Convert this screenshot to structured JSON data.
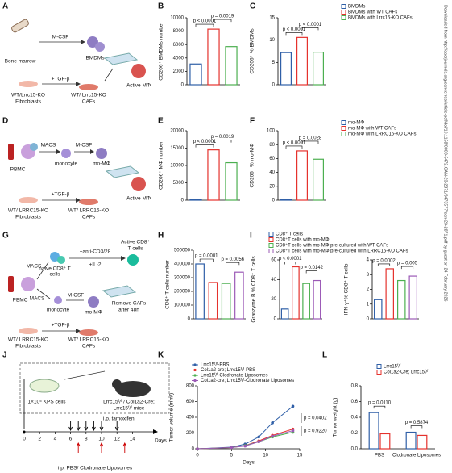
{
  "panels": [
    "A",
    "B",
    "C",
    "D",
    "E",
    "F",
    "G",
    "H",
    "I",
    "J",
    "K",
    "L"
  ],
  "diagram_a": [
    "Bone marrow",
    "M-CSF",
    "BMDMs",
    "+TGF-β",
    "WT/Lrrc15-KO",
    "Fibroblasts",
    "WT/ Lrrc15-KO",
    "CAFs",
    "Active MΦ"
  ],
  "diagram_d": [
    "PBMC",
    "MACS",
    "monocyte",
    "M-CSF",
    "mo-MΦ",
    "+TGF-β",
    "WT/ LRRC15-KO",
    "Fibroblasts",
    "WT/ LRRC15-KO",
    "CAFs",
    "Active MΦ"
  ],
  "diagram_g": [
    "MACS",
    "naive CD8⁺ T",
    "cells",
    "+anti-CD3/28",
    "+IL-2",
    "Active CD8⁺",
    "T cells",
    "PBMC",
    "MACS",
    "monocyte",
    "M-CSF",
    "mo-MΦ",
    "Remove CAFs",
    "after 48h",
    "+TGF-β",
    "WT/ LRRC15-KO",
    "Fibroblasts",
    "WT/ LRRC15-KO",
    "CAFs"
  ],
  "diagram_j": {
    "labels": [
      "1×10⁵ KPS cells",
      "Lrrc15ᶠ/ᶠ / Col1a2-Cre;",
      "Lrrc15ᶠ/ᶠ mice",
      "i.p. tamoxifen",
      "i.p. PBS/ Clodronate Liposomes",
      "Days"
    ],
    "ticks": [
      0,
      2,
      4,
      6,
      8,
      10,
      12,
      14
    ],
    "tamoxifen_days": [
      6,
      7,
      8,
      9,
      10,
      12
    ],
    "liposome_days": [
      7,
      10,
      13
    ]
  },
  "chart_data": [
    {
      "type": "bar",
      "ylabel": "CD206⁺ BMDMs number",
      "values": [
        3100,
        8300,
        5700
      ],
      "colors": [
        "#2f5fa7",
        "#e5322d",
        "#4caf50"
      ],
      "ylim": [
        0,
        10000
      ],
      "yticks": [
        0,
        2000,
        4000,
        6000,
        8000,
        10000
      ],
      "annotations": [
        "p < 0.0001",
        "p = 0.0019"
      ]
    },
    {
      "type": "bar",
      "ylabel": "CD206⁺ % BMDMs",
      "values": [
        7.2,
        10.6,
        7.3
      ],
      "colors": [
        "#2f5fa7",
        "#e5322d",
        "#4caf50"
      ],
      "ylim": [
        0,
        15
      ],
      "yticks": [
        0,
        5,
        10,
        15
      ],
      "annotations": [
        "p < 0.0001",
        "p < 0.0001"
      ],
      "categories": [
        "BMDMs",
        "BMDMs with WT CAFs",
        "BMDMs with Lrrc15-KO CAFs"
      ]
    },
    {
      "type": "bar",
      "ylabel": "CD206⁺ MΦ number",
      "values": [
        100,
        14500,
        10800
      ],
      "colors": [
        "#2f5fa7",
        "#e5322d",
        "#4caf50"
      ],
      "ylim": [
        0,
        20000
      ],
      "yticks": [
        0,
        5000,
        10000,
        15000,
        20000
      ],
      "annotations": [
        "p < 0.0001",
        "p = 0.0019"
      ]
    },
    {
      "type": "bar",
      "ylabel": "CD206⁺ % mo-MΦ",
      "values": [
        1,
        71,
        59
      ],
      "colors": [
        "#2f5fa7",
        "#e5322d",
        "#4caf50"
      ],
      "ylim": [
        0,
        100
      ],
      "yticks": [
        0,
        20,
        40,
        60,
        80,
        100
      ],
      "annotations": [
        "p < 0.0001",
        "p = 0.0028"
      ],
      "categories": [
        "mo-MΦ",
        "mo-MΦ with WT CAFs",
        "mo-MΦ with LRRC15-KO CAFs"
      ]
    },
    {
      "type": "bar",
      "ylabel": "CD8⁺ T cells number",
      "values": [
        400000,
        265000,
        258000,
        340000
      ],
      "colors": [
        "#2f5fa7",
        "#e5322d",
        "#4caf50",
        "#9b59b6"
      ],
      "ylim": [
        0,
        500000
      ],
      "yticks": [
        0,
        100000,
        200000,
        300000,
        400000,
        500000
      ],
      "annotations": [
        "p = 0.0001",
        "p = 0.0056"
      ]
    },
    {
      "type": "bar",
      "ylabel": "Granzyme B % CD8⁺ T cells",
      "values": [
        10,
        53,
        36,
        39
      ],
      "colors": [
        "#2f5fa7",
        "#e5322d",
        "#4caf50",
        "#9b59b6"
      ],
      "ylim": [
        0,
        60
      ],
      "yticks": [
        0,
        20,
        40,
        60
      ],
      "annotations": [
        "p < 0.0001",
        "p = 0.0142"
      ],
      "categories": [
        "CD8⁺ T cells",
        "CD8⁺T cells with mo-MΦ",
        "CD8⁺T cells with mo-MΦ pre-cultured with WT CAFs",
        "CD8⁺T cells with mo-MΦ pre-cultured with LRRC15-KO CAFs"
      ]
    },
    {
      "type": "bar",
      "ylabel": "IFN-γ⁺% CD8⁺ T cells",
      "values": [
        1.3,
        3.4,
        2.6,
        2.9
      ],
      "colors": [
        "#2f5fa7",
        "#e5322d",
        "#4caf50",
        "#9b59b6"
      ],
      "ylim": [
        0,
        4
      ],
      "yticks": [
        0,
        1,
        2,
        3,
        4
      ],
      "annotations": [
        "p = 0.0002",
        "p = 0.005"
      ]
    },
    {
      "type": "line",
      "ylabel": "Tumor volume (mm³)",
      "xlabel": "Days",
      "x": [
        0,
        5,
        7,
        9,
        11,
        14
      ],
      "xlim": [
        0,
        15
      ],
      "xticks": [
        0,
        5,
        10,
        15
      ],
      "ylim": [
        0,
        800
      ],
      "yticks": [
        0,
        200,
        400,
        600,
        800
      ],
      "series": [
        {
          "name": "Lrrc15ᶠ/ᶠ-PBS",
          "color": "#2f5fa7",
          "values": [
            0,
            20,
            60,
            150,
            330,
            540
          ]
        },
        {
          "name": "Col1a2-cre; Lrrc15ᶠ/ᶠ-PBS",
          "color": "#e5322d",
          "values": [
            0,
            15,
            40,
            100,
            170,
            250
          ]
        },
        {
          "name": "Lrrc15ᶠ/ᶠ-Clodronate Liposomes",
          "color": "#4caf50",
          "values": [
            0,
            15,
            40,
            90,
            150,
            210
          ]
        },
        {
          "name": "Col1a2-cre; Lrrc15ᶠ/ᶠ-Clodronate Liposomes",
          "color": "#9b59b6",
          "values": [
            0,
            15,
            35,
            90,
            160,
            230
          ]
        }
      ],
      "annotations": [
        "p = 0.0402",
        "p = 0.9220"
      ]
    },
    {
      "type": "grouped_bar",
      "ylabel": "Tumor weight (g)",
      "categories": [
        "PBS",
        "Clodronate Liposomes"
      ],
      "ylim": [
        0,
        0.8
      ],
      "yticks": [
        {
          "value": 0,
          "label": "0.0"
        },
        0.2,
        0.4,
        0.6,
        0.8
      ],
      "series": [
        {
          "name": "Lrrc15ᶠ/ᶠ",
          "color": "#2f5fa7",
          "values": [
            0.46,
            0.21
          ]
        },
        {
          "name": "Col1a2-Cre; Lrrc15ᶠ/ᶠ",
          "color": "#e5322d",
          "values": [
            0.19,
            0.17
          ]
        }
      ],
      "annotations": [
        "p = 0.0110",
        "p = 0.5874"
      ]
    }
  ],
  "watermark": "Downloaded from http://aacrjournals.org/cancerres/article-pdf/doi/10.1158/0008-5472.CAN-23-2871/3473577/can-23-2871.pdf by guest on 24 February 2026"
}
